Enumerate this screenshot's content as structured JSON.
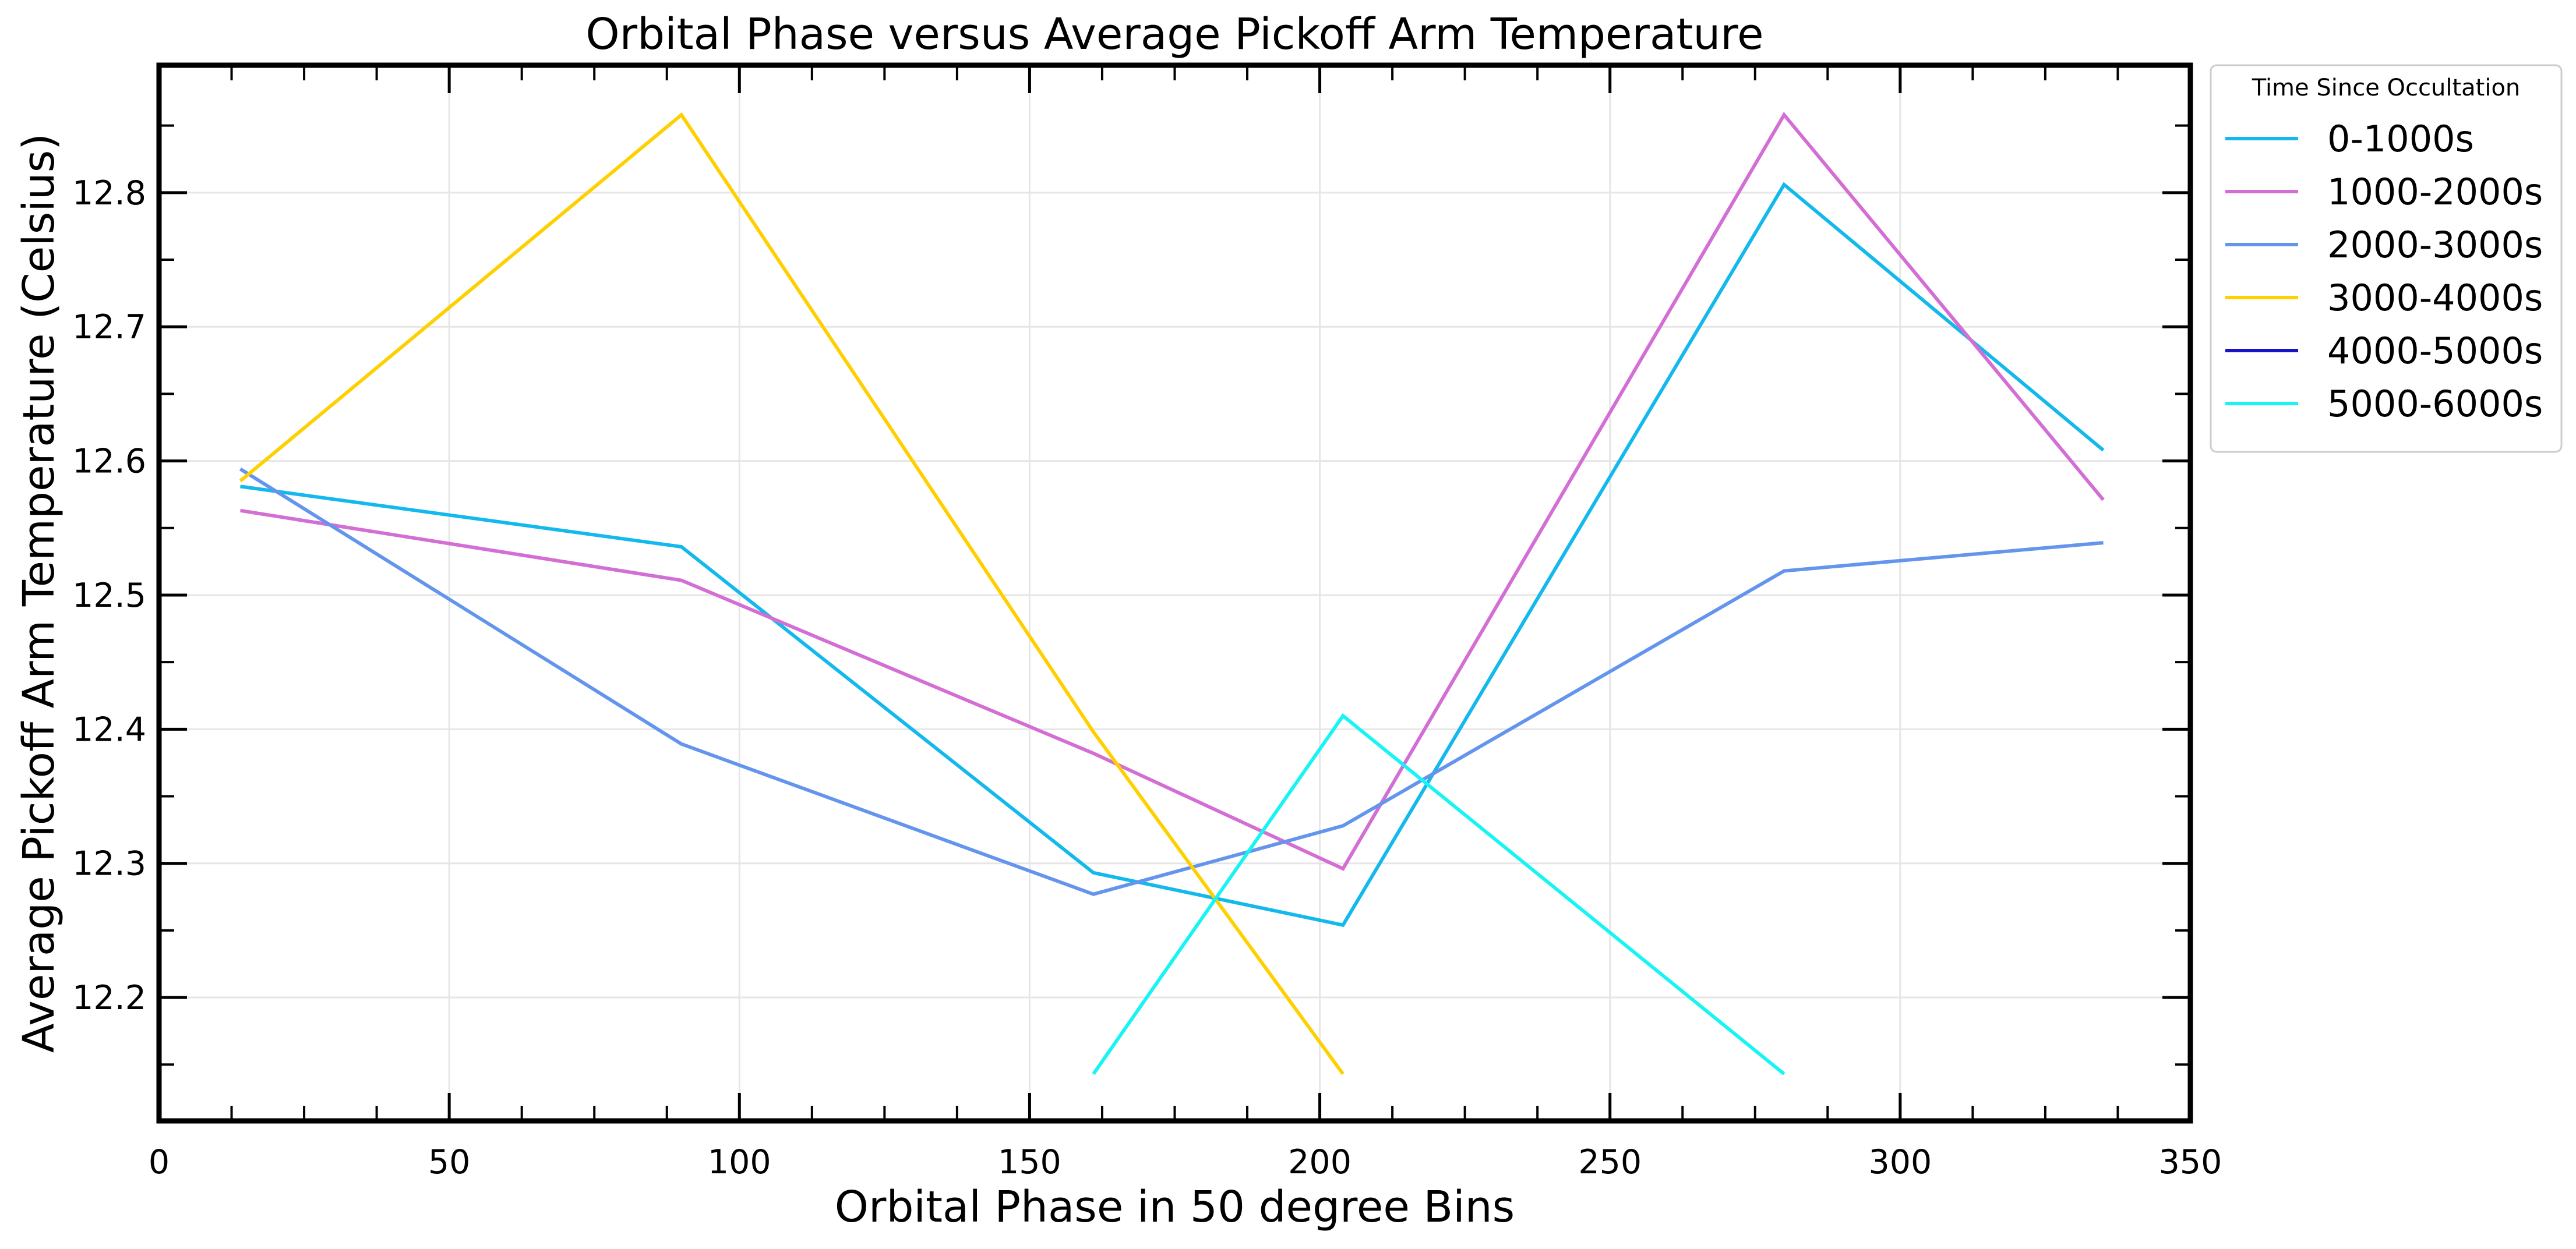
{
  "chart_data": {
    "type": "line",
    "title": "Orbital Phase versus Average Pickoff Arm Temperature",
    "xlabel": "Orbital Phase in 50 degree Bins",
    "ylabel": "Average Pickoff Arm Temperature (Celsius)",
    "xlim": [
      0,
      350
    ],
    "ylim": [
      12.108,
      12.895
    ],
    "x_ticks": [
      0,
      50,
      100,
      150,
      200,
      250,
      300,
      350
    ],
    "x_tick_labels": [
      "0",
      "50",
      "100",
      "150",
      "200",
      "250",
      "300",
      "350"
    ],
    "x_minor_step": 12.5,
    "y_ticks": [
      12.2,
      12.3,
      12.4,
      12.5,
      12.6,
      12.7,
      12.8
    ],
    "y_tick_labels": [
      "12.2",
      "12.3",
      "12.4",
      "12.5",
      "12.6",
      "12.7",
      "12.8"
    ],
    "y_minor_step": 0.05,
    "grid": true,
    "legend": {
      "title": "Time Since Occultation",
      "placement": "outside-top-right"
    },
    "series": [
      {
        "name": "0-1000s",
        "color": "#13b9ec",
        "x": [
          14,
          90,
          161,
          204,
          280,
          335
        ],
        "y": [
          12.581,
          12.536,
          12.293,
          12.254,
          12.806,
          12.608
        ]
      },
      {
        "name": "1000-2000s",
        "color": "#d36ed4",
        "x": [
          14,
          90,
          161,
          204,
          280,
          335
        ],
        "y": [
          12.563,
          12.511,
          12.382,
          12.296,
          12.858,
          12.571
        ]
      },
      {
        "name": "2000-3000s",
        "color": "#6495ed",
        "x": [
          14,
          90,
          161,
          204,
          280,
          335
        ],
        "y": [
          12.594,
          12.389,
          12.277,
          12.328,
          12.518,
          12.539
        ]
      },
      {
        "name": "3000-4000s",
        "color": "#ffd000",
        "x": [
          14,
          90,
          161,
          204
        ],
        "y": [
          12.585,
          12.858,
          12.398,
          12.143
        ]
      },
      {
        "name": "4000-5000s",
        "color": "#1a14c8",
        "x": [],
        "y": []
      },
      {
        "name": "5000-6000s",
        "color": "#18f4f4",
        "x": [
          161,
          204,
          280
        ],
        "y": [
          12.143,
          12.41,
          12.143
        ]
      }
    ]
  }
}
